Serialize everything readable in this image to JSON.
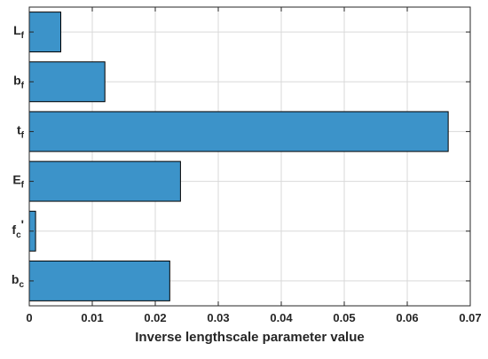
{
  "chart_data": {
    "type": "bar",
    "orientation": "horizontal",
    "categories": [
      {
        "main": "L",
        "sub": "f"
      },
      {
        "main": "b",
        "sub": "f"
      },
      {
        "main": "t",
        "sub": "f"
      },
      {
        "main": "E",
        "sub": "f"
      },
      {
        "main": "f",
        "sub": "c",
        "suffix": "'"
      },
      {
        "main": "b",
        "sub": "c"
      }
    ],
    "values": [
      0.005,
      0.012,
      0.0665,
      0.024,
      0.001,
      0.0223
    ],
    "xlabel": "Inverse lengthscale parameter value",
    "ylabel": "",
    "title": "",
    "xlim": [
      0,
      0.07
    ],
    "xticks": [
      0,
      0.01,
      0.02,
      0.03,
      0.04,
      0.05,
      0.06,
      0.07
    ],
    "xtick_labels": [
      "0",
      "0.01",
      "0.02",
      "0.03",
      "0.04",
      "0.05",
      "0.06",
      "0.07"
    ],
    "grid": true,
    "bar_color": "#3c93c9",
    "bar_edge_color": "#000000",
    "grid_color": "#d9d9d9",
    "axis_color": "#262626"
  }
}
